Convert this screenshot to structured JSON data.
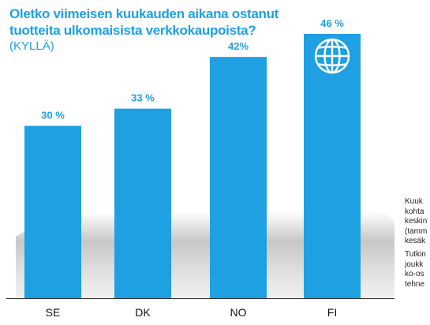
{
  "title_lines": [
    "Oletko viimeisen kuukauden aikana ostanut",
    "tuotteita ulkomaisista verkkokaupoista?"
  ],
  "subtitle": "(KYLLÄ)",
  "side_note": {
    "block1": [
      "Kuuk",
      "kohta",
      "keskin",
      "(tamm",
      "kesäk"
    ],
    "block2": [
      "Tutkin",
      "joukk",
      "ko-os",
      "tehne"
    ]
  },
  "colors": {
    "bar": "#1fa0e3",
    "label": "#1fa0e3",
    "axis_text": "#111111",
    "shadow": "#c8c8c8"
  },
  "chart_data": {
    "type": "bar",
    "title": "Oletko viimeisen kuukauden aikana ostanut tuotteita ulkomaisista verkkokaupoista?",
    "subtitle": "(KYLLÄ)",
    "categories": [
      "SE",
      "DK",
      "NO",
      "FI"
    ],
    "values": [
      30,
      33,
      42,
      46
    ],
    "data_labels": [
      "30 %",
      "33 %",
      "42%",
      "46 %"
    ],
    "ylim": [
      0,
      46
    ],
    "grid": false,
    "icon_on_bar": {
      "category": "FI",
      "icon": "globe-icon"
    }
  }
}
